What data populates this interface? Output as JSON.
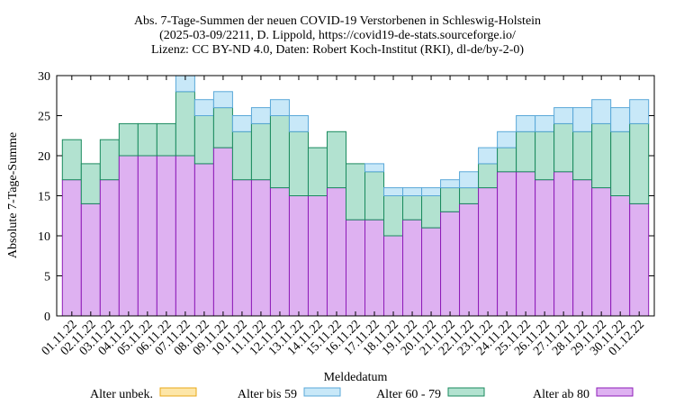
{
  "chart_data": {
    "type": "bar",
    "stacked": true,
    "title": [
      "Abs. 7-Tage-Summen der neuen COVID-19 Verstorbenen in Schleswig-Holstein",
      "(2025-03-09/2211, D. Lippold, https://covid19-de-stats.sourceforge.io/",
      "Lizenz: CC BY-ND 4.0, Daten: Robert Koch-Institut (RKI), dl-de/by-2-0)"
    ],
    "xlabel": "Meldedatum",
    "ylabel": "Absolute 7-Tage-Summe",
    "ylim": [
      0,
      30
    ],
    "yticks": [
      "0",
      "5",
      "10",
      "15",
      "20",
      "25",
      "30"
    ],
    "grid": false,
    "legend_position": "bottom",
    "categories": [
      "01.11.22",
      "02.11.22",
      "03.11.22",
      "04.11.22",
      "05.11.22",
      "06.11.22",
      "07.11.22",
      "08.11.22",
      "09.11.22",
      "10.11.22",
      "11.11.22",
      "12.11.22",
      "13.11.22",
      "14.11.22",
      "15.11.22",
      "16.11.22",
      "17.11.22",
      "18.11.22",
      "19.11.22",
      "20.11.22",
      "21.11.22",
      "22.11.22",
      "23.11.22",
      "24.11.22",
      "25.11.22",
      "26.11.22",
      "27.11.22",
      "28.11.22",
      "29.11.22",
      "30.11.22",
      "01.12.22"
    ],
    "series": [
      {
        "name": "Alter ab 80",
        "fill": "#deb1f1",
        "stroke": "#8e1cb8",
        "values": [
          17,
          14,
          17,
          20,
          20,
          20,
          20,
          19,
          21,
          17,
          17,
          16,
          15,
          15,
          16,
          12,
          12,
          10,
          12,
          11,
          13,
          14,
          16,
          18,
          18,
          17,
          18,
          17,
          16,
          15,
          14
        ]
      },
      {
        "name": "Alter 60 - 79",
        "fill": "#b2e2d0",
        "stroke": "#1a8a5e",
        "values": [
          5,
          5,
          5,
          4,
          4,
          4,
          8,
          6,
          5,
          6,
          7,
          9,
          8,
          6,
          7,
          7,
          6,
          5,
          3,
          4,
          3,
          2,
          3,
          3,
          5,
          6,
          6,
          6,
          8,
          8,
          10
        ]
      },
      {
        "name": "Alter bis 59",
        "fill": "#c8e8f8",
        "stroke": "#5aa8d8",
        "values": [
          0,
          0,
          0,
          0,
          0,
          0,
          2,
          2,
          2,
          2,
          2,
          2,
          2,
          0,
          0,
          0,
          1,
          1,
          1,
          1,
          1,
          2,
          2,
          2,
          2,
          2,
          2,
          3,
          3,
          3,
          3
        ]
      },
      {
        "name": "Alter unbek.",
        "fill": "#fde6a8",
        "stroke": "#e8a818",
        "values": [
          0,
          0,
          0,
          0,
          0,
          0,
          0,
          0,
          0,
          0,
          0,
          0,
          0,
          0,
          0,
          0,
          0,
          0,
          0,
          0,
          0,
          0,
          0,
          0,
          0,
          0,
          0,
          0,
          0,
          0,
          0
        ]
      }
    ],
    "legend_order": [
      "Alter unbek.",
      "Alter bis 59",
      "Alter 60 - 79",
      "Alter ab 80"
    ]
  }
}
